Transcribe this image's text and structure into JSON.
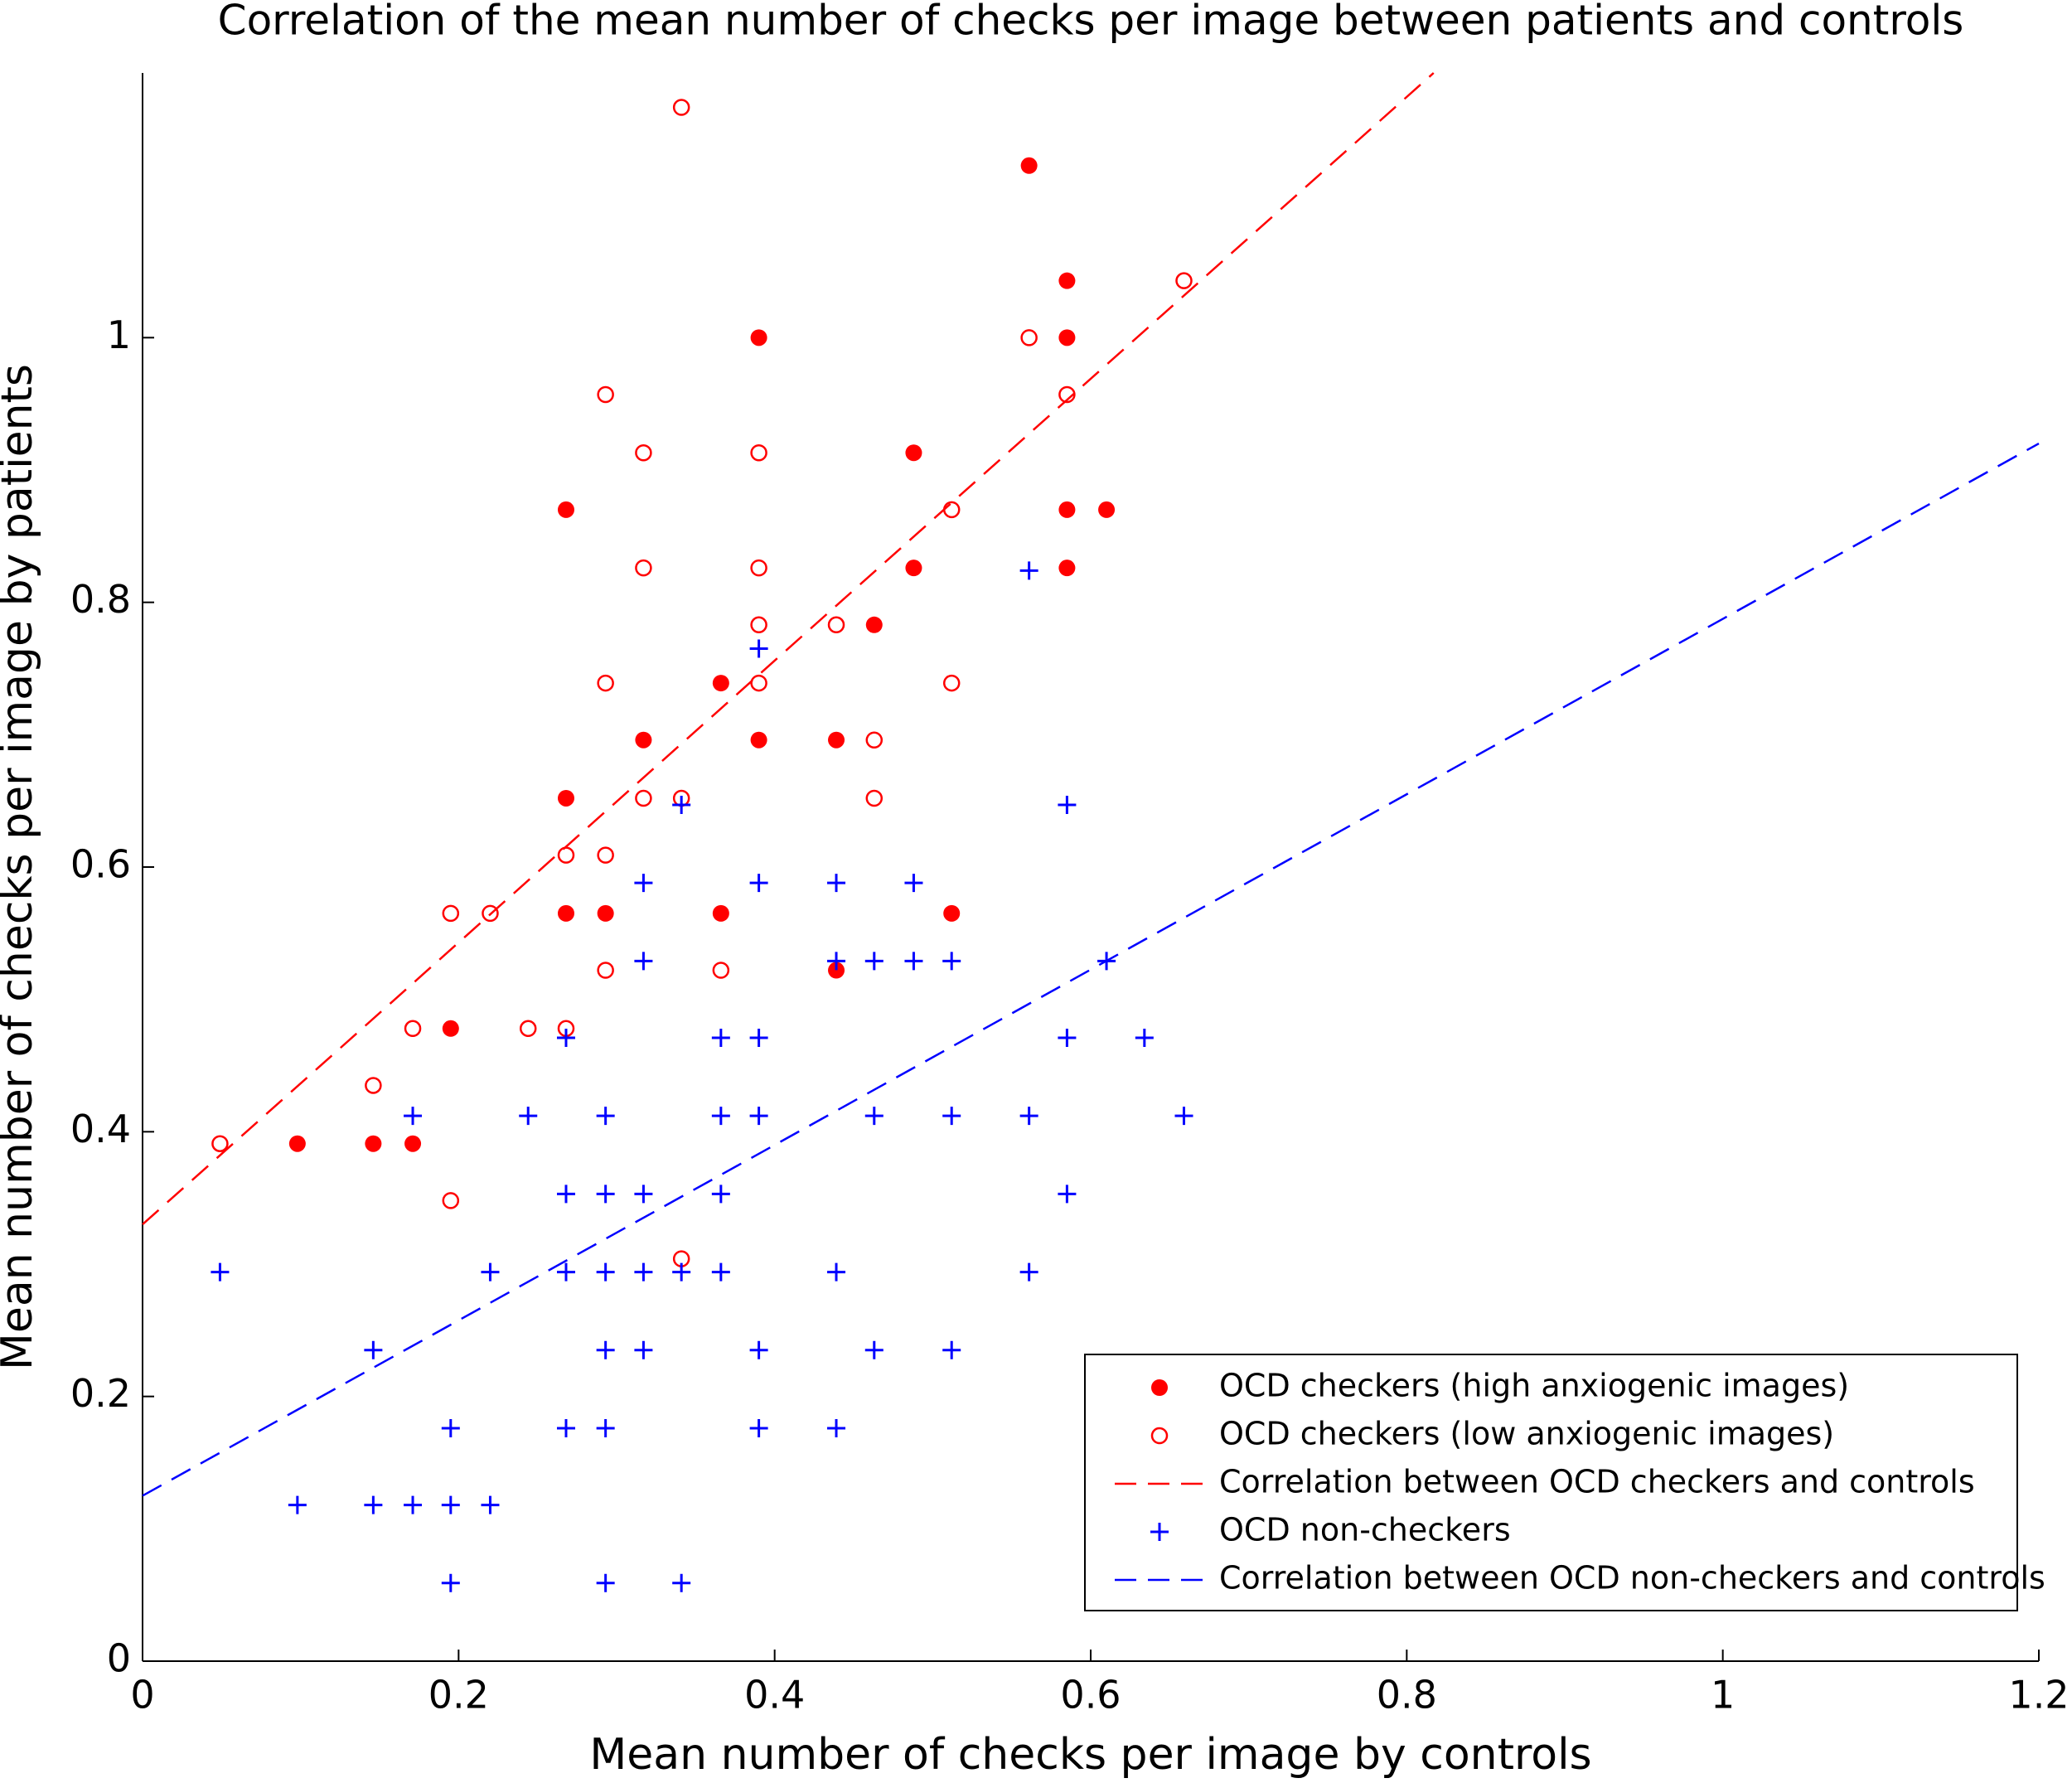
{
  "chart_data": {
    "type": "scatter",
    "title": "Correlation of the mean number of checks per image between patients and controls",
    "x_label": "Mean number of checks per image by controls",
    "y_label": "Mean number of checks per image by patients",
    "xlim": [
      0,
      1.2
    ],
    "ylim": [
      0,
      1.2
    ],
    "xticks": [
      0,
      0.2,
      0.4,
      0.6,
      0.8,
      1,
      1.2
    ],
    "yticks": [
      0,
      0.2,
      0.4,
      0.6,
      0.8,
      1
    ],
    "grid": false,
    "legend_location": "lower right",
    "series": [
      {
        "name": "OCD checkers (high anxiogenic images)",
        "color": "#ff0000",
        "marker": "filled-circle",
        "x": [
          0.098,
          0.146,
          0.171,
          0.195,
          0.268,
          0.268,
          0.268,
          0.293,
          0.317,
          0.366,
          0.366,
          0.39,
          0.39,
          0.439,
          0.439,
          0.463,
          0.488,
          0.488,
          0.512,
          0.561,
          0.585,
          0.585,
          0.585,
          0.585,
          0.61
        ],
        "values": [
          0.391,
          0.391,
          0.391,
          0.478,
          0.87,
          0.652,
          0.565,
          0.565,
          0.696,
          0.739,
          0.565,
          1.0,
          0.696,
          0.696,
          0.522,
          0.783,
          0.913,
          0.826,
          0.565,
          1.13,
          1.043,
          1.0,
          0.87,
          0.826,
          0.87
        ]
      },
      {
        "name": "OCD checkers (low anxiogenic images)",
        "color": "#ff0000",
        "marker": "open-circle",
        "x": [
          0.049,
          0.146,
          0.171,
          0.195,
          0.195,
          0.22,
          0.244,
          0.268,
          0.268,
          0.293,
          0.293,
          0.293,
          0.293,
          0.317,
          0.317,
          0.317,
          0.341,
          0.341,
          0.341,
          0.366,
          0.39,
          0.39,
          0.39,
          0.39,
          0.439,
          0.463,
          0.463,
          0.512,
          0.512,
          0.561,
          0.585,
          0.659
        ],
        "values": [
          0.391,
          0.435,
          0.478,
          0.565,
          0.348,
          0.565,
          0.478,
          0.609,
          0.478,
          0.957,
          0.739,
          0.609,
          0.522,
          0.913,
          0.826,
          0.652,
          1.174,
          0.652,
          0.304,
          0.522,
          0.913,
          0.826,
          0.783,
          0.739,
          0.783,
          0.696,
          0.652,
          0.87,
          0.739,
          1.0,
          0.957,
          1.043
        ]
      },
      {
        "name": "Correlation between OCD checkers and controls",
        "color": "#ff0000",
        "marker": "dashed-line",
        "x": [
          0,
          0.817
        ],
        "values": [
          0.33,
          1.2
        ]
      },
      {
        "name": "OCD non-checkers",
        "color": "#0000ff",
        "marker": "plus",
        "x": [
          0.049,
          0.098,
          0.146,
          0.146,
          0.171,
          0.171,
          0.195,
          0.195,
          0.195,
          0.22,
          0.22,
          0.244,
          0.268,
          0.268,
          0.268,
          0.268,
          0.293,
          0.293,
          0.293,
          0.293,
          0.293,
          0.293,
          0.317,
          0.317,
          0.317,
          0.317,
          0.317,
          0.341,
          0.341,
          0.341,
          0.366,
          0.366,
          0.366,
          0.366,
          0.39,
          0.39,
          0.39,
          0.39,
          0.39,
          0.39,
          0.439,
          0.439,
          0.439,
          0.439,
          0.463,
          0.463,
          0.463,
          0.488,
          0.488,
          0.512,
          0.512,
          0.512,
          0.561,
          0.561,
          0.561,
          0.585,
          0.585,
          0.585,
          0.61,
          0.634,
          0.659
        ],
        "values": [
          0.294,
          0.118,
          0.235,
          0.118,
          0.412,
          0.118,
          0.176,
          0.118,
          0.059,
          0.294,
          0.118,
          0.412,
          0.471,
          0.353,
          0.294,
          0.176,
          0.412,
          0.353,
          0.294,
          0.235,
          0.176,
          0.059,
          0.588,
          0.529,
          0.353,
          0.294,
          0.235,
          0.647,
          0.294,
          0.059,
          0.471,
          0.412,
          0.353,
          0.294,
          0.765,
          0.588,
          0.471,
          0.412,
          0.235,
          0.176,
          0.588,
          0.529,
          0.294,
          0.176,
          0.529,
          0.412,
          0.235,
          0.588,
          0.529,
          0.529,
          0.412,
          0.235,
          0.824,
          0.412,
          0.294,
          0.647,
          0.471,
          0.353,
          0.529,
          0.471,
          0.412
        ]
      },
      {
        "name": "Correlation between OCD non-checkers and controls",
        "color": "#0000ff",
        "marker": "dashed-line",
        "x": [
          0,
          1.2
        ],
        "values": [
          0.125,
          0.92
        ]
      }
    ]
  }
}
